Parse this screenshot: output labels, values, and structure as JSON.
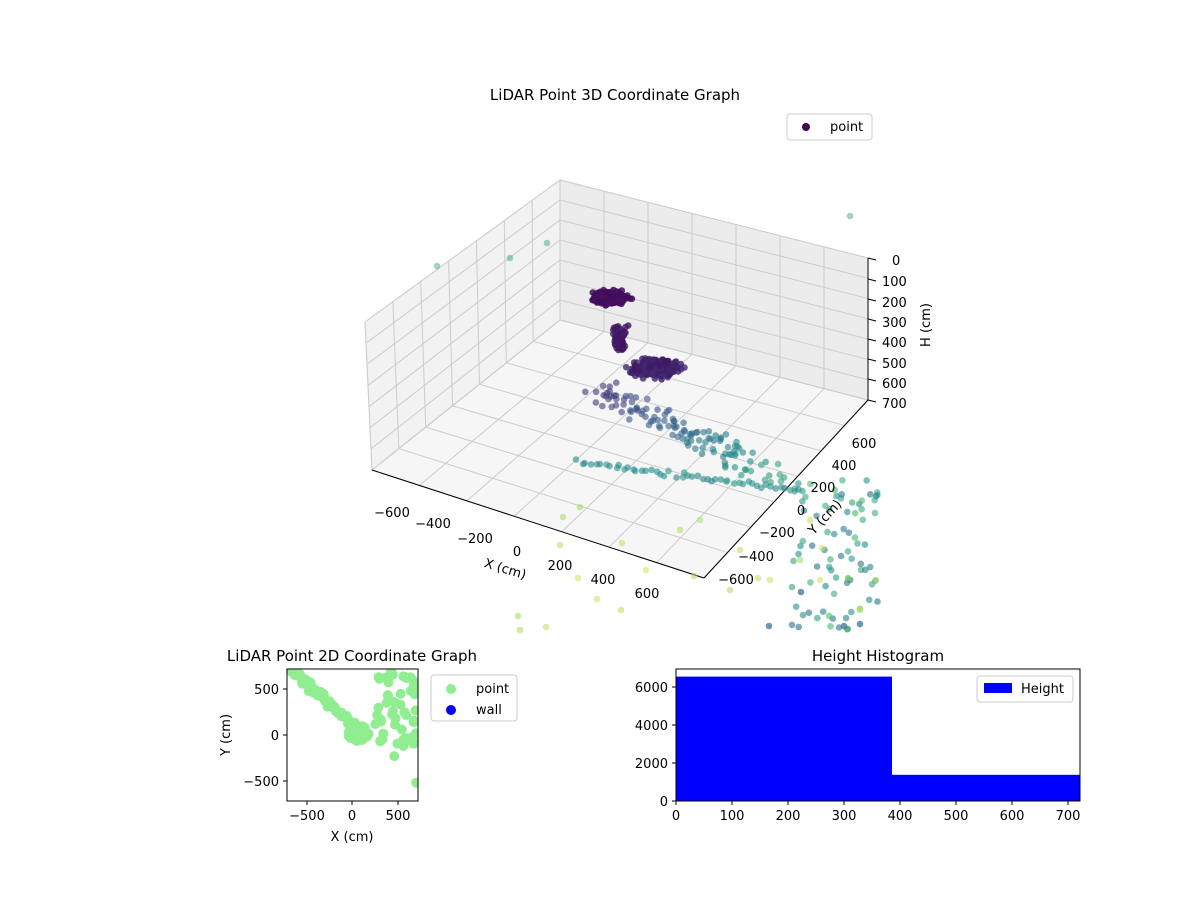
{
  "colors": {
    "background": "#ffffff",
    "pane": "#f2f2f2",
    "grid": "#cccccc",
    "axis": "#000000",
    "viridis_low": "#440154",
    "viridis_mid": "#3b8c8c",
    "viridis_high": "#d8e756",
    "scatter2d_point": "#90ee90",
    "scatter2d_wall": "#0000ff",
    "histogram": "#0000ff"
  },
  "chart_data": [
    {
      "id": "lidar-3d",
      "type": "scatter",
      "projection": "3d",
      "title": "LiDAR Point 3D Coordinate Graph",
      "xlabel": "X (cm)",
      "ylabel": "Y (cm)",
      "zlabel": "H (cm)",
      "x_ticks": [
        "−600",
        "−400",
        "−200",
        "0",
        "200",
        "400",
        "600"
      ],
      "y_ticks": [
        "−600",
        "−400",
        "−200",
        "0",
        "200",
        "400",
        "600"
      ],
      "z_ticks": [
        "0",
        "100",
        "200",
        "300",
        "400",
        "500",
        "600",
        "700"
      ],
      "xlim": [
        -700,
        700
      ],
      "ylim": [
        -700,
        700
      ],
      "zlim": [
        0,
        700
      ],
      "z_axis_inverted": true,
      "colormap": "viridis",
      "grid": true,
      "legend": {
        "position": "top-right",
        "entries": [
          "point"
        ]
      },
      "series": [
        {
          "name": "point"
        }
      ]
    },
    {
      "id": "lidar-2d",
      "type": "scatter",
      "title": "LiDAR Point 2D Coordinate Graph",
      "xlabel": "X (cm)",
      "ylabel": "Y (cm)",
      "x_ticks": [
        "−500",
        "0",
        "500"
      ],
      "y_ticks": [
        "−500",
        "0",
        "500"
      ],
      "xlim": [
        -720,
        720
      ],
      "ylim": [
        -720,
        720
      ],
      "grid": false,
      "legend": {
        "position": "outside-right",
        "entries": [
          "point",
          "wall"
        ]
      },
      "series": [
        {
          "name": "point",
          "color": "#90ee90"
        },
        {
          "name": "wall",
          "color": "#0000ff",
          "values": []
        }
      ]
    },
    {
      "id": "height-hist",
      "type": "bar",
      "title": "Height Histogram",
      "xlabel": "",
      "ylabel": "",
      "x_ticks": [
        "0",
        "100",
        "200",
        "300",
        "400",
        "500",
        "600",
        "700"
      ],
      "y_ticks": [
        "0",
        "2000",
        "4000",
        "6000"
      ],
      "xlim": [
        0,
        720
      ],
      "ylim": [
        0,
        6950
      ],
      "grid": false,
      "legend": {
        "position": "top-right",
        "entries": [
          "Height"
        ]
      },
      "bins": [
        {
          "start": 0,
          "end": 385,
          "count": 6550
        },
        {
          "start": 385,
          "end": 720,
          "count": 1380
        }
      ],
      "series": [
        {
          "name": "Height",
          "color": "#0000ff"
        }
      ]
    }
  ]
}
